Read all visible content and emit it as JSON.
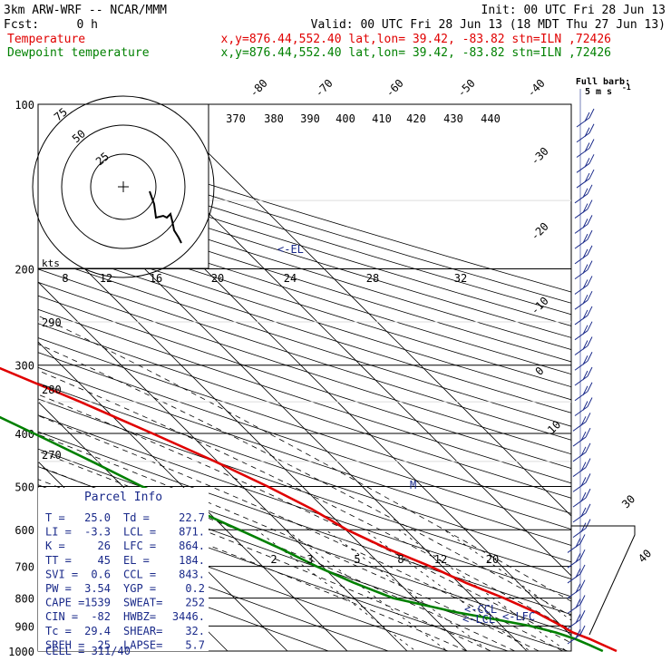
{
  "header": {
    "model": "3km ARW-WRF -- NCAR/MMM",
    "init": "Init: 00 UTC Fri 28 Jun 13",
    "fcst_label": "Fcst:",
    "fcst_value": "0 h",
    "valid": "Valid: 00 UTC Fri 28 Jun 13 (18 MDT Thu 27 Jun 13)",
    "temp_label": "Temperature",
    "dew_label": "Dewpoint temperature",
    "temp_loc": "x,y=876.44,552.40   lat,lon= 39.42, -83.82   stn=ILN ,72426",
    "dew_loc": "x,y=876.44,552.40   lat,lon= 39.42, -83.82   stn=ILN ,72426",
    "colors": {
      "temperature": "#e00000",
      "dewpoint": "#008000",
      "wind": "#1a2a8a"
    }
  },
  "chart_data": {
    "type": "line",
    "chart_kind": "skew-T log-P sounding",
    "y_axis": {
      "scale": "log",
      "ticks": [
        100,
        200,
        300,
        400,
        500,
        600,
        700,
        800,
        900,
        1000
      ]
    },
    "isotherm_ticks": [
      "-80",
      "-70",
      "-60",
      "-50",
      "-40",
      "-30",
      "-20",
      "-10",
      "0",
      "10",
      "30",
      "40"
    ],
    "theta_labels": [
      "370",
      "380",
      "390",
      "400",
      "410",
      "420",
      "430",
      "440"
    ],
    "theta_left_labels": [
      "290",
      "280",
      "270"
    ],
    "mixing_ratio_labels_upper": [
      "8",
      "12",
      "16",
      "20",
      "24",
      "28",
      "32"
    ],
    "mixing_ratio_labels_lower": [
      "2",
      "3",
      "5",
      "8",
      "12",
      "20"
    ],
    "series": [
      {
        "name": "Temperature",
        "color": "#e00000",
        "points": [
          [
            1000,
            25.0
          ],
          [
            950,
            22.5
          ],
          [
            925,
            20.8
          ],
          [
            900,
            20.0
          ],
          [
            850,
            18.0
          ],
          [
            800,
            15.0
          ],
          [
            750,
            11.2
          ],
          [
            700,
            8.0
          ],
          [
            650,
            3.8
          ],
          [
            600,
            0.2
          ],
          [
            550,
            -2.2
          ],
          [
            500,
            -5.8
          ],
          [
            450,
            -10.4
          ],
          [
            400,
            -16.2
          ],
          [
            350,
            -23.0
          ],
          [
            300,
            -31.5
          ],
          [
            250,
            -41.0
          ],
          [
            220,
            -47.8
          ],
          [
            200,
            -53.5
          ],
          [
            180,
            -54.4
          ],
          [
            150,
            -57.0
          ],
          [
            130,
            -60.5
          ],
          [
            100,
            -70.5
          ]
        ]
      },
      {
        "name": "Dewpoint temperature",
        "color": "#008000",
        "points": [
          [
            1000,
            22.7
          ],
          [
            975,
            21.5
          ],
          [
            950,
            20.1
          ],
          [
            925,
            18.0
          ],
          [
            900,
            14.8
          ],
          [
            870,
            9.0
          ],
          [
            850,
            4.8
          ],
          [
            800,
            -3.5
          ],
          [
            750,
            -7.5
          ],
          [
            700,
            -11.0
          ],
          [
            650,
            -14.0
          ],
          [
            600,
            -17.8
          ],
          [
            550,
            -22.0
          ],
          [
            500,
            -26.8
          ],
          [
            450,
            -31.0
          ],
          [
            400,
            -36.0
          ],
          [
            350,
            -41.8
          ],
          [
            300,
            -46.8
          ],
          [
            250,
            -53.5
          ],
          [
            220,
            -59.0
          ],
          [
            200,
            -64.5
          ],
          [
            180,
            -70.5
          ],
          [
            150,
            -77.5
          ],
          [
            120,
            -83.0
          ],
          [
            100,
            -87.0
          ]
        ]
      }
    ],
    "annotations": {
      "el": "<-EL",
      "lcl": "<-LCL",
      "lfc": "<-LFC",
      "ccl": "<-CCL",
      "m": "M"
    },
    "hodograph": {
      "units": "kts",
      "rings": [
        "25",
        "50",
        "75"
      ]
    },
    "wind_barb_legend": {
      "title": "Full barb:",
      "value": "5 m s",
      "exponent": "-1"
    },
    "wind_barb_count": 35
  },
  "parcel_info": {
    "title": "Parcel Info",
    "rows": [
      [
        "T  =",
        "25.0",
        "Td =",
        "22.7"
      ],
      [
        "LI =",
        "-3.3",
        "LCL =",
        "871."
      ],
      [
        "K  =",
        "26",
        "LFC =",
        "864."
      ],
      [
        "TT =",
        "45",
        "EL =",
        "184."
      ],
      [
        "SVI =",
        "0.6",
        "CCL =",
        "843."
      ],
      [
        "PW =",
        "3.54",
        "YGP =",
        "0.2"
      ],
      [
        "CAPE =",
        "1539",
        "SWEAT=",
        "252"
      ],
      [
        "CIN =",
        "-82",
        "HWBZ=",
        "3446."
      ],
      [
        "Tc =",
        "29.4",
        "SHEAR=",
        "32."
      ],
      [
        "SREH =",
        "25",
        "LAPSE=",
        "5.7"
      ]
    ],
    "cell": "CELL = 311/40"
  }
}
